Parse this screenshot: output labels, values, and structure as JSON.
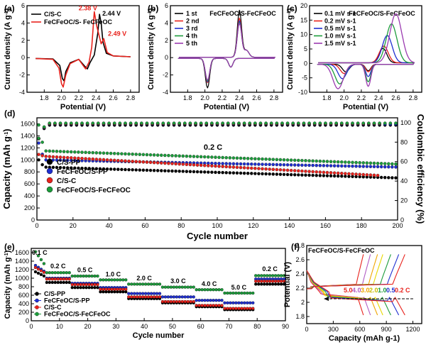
{
  "chart_data": [
    {
      "panel": "(a)",
      "type": "line",
      "xlabel": "Potential (V)",
      "ylabel": "Current density (A g-1)",
      "xlim": [
        1.6,
        2.9
      ],
      "ylim": [
        -4,
        6
      ],
      "xticks": [
        1.8,
        2.0,
        2.2,
        2.4,
        2.6,
        2.8
      ],
      "yticks": [
        -4,
        -2,
        0,
        2,
        4,
        6
      ],
      "series": [
        {
          "name": "C/S-C",
          "color": "#000000",
          "points": [
            [
              1.7,
              -0.1
            ],
            [
              1.9,
              -0.15
            ],
            [
              1.98,
              -0.9
            ],
            [
              2.01,
              -2.4
            ],
            [
              2.03,
              -2.7
            ],
            [
              2.05,
              -1.6
            ],
            [
              2.1,
              -0.6
            ],
            [
              2.2,
              -0.2
            ],
            [
              2.27,
              -1.0
            ],
            [
              2.3,
              -1.3
            ],
            [
              2.33,
              -0.6
            ],
            [
              2.38,
              0.3
            ],
            [
              2.42,
              2.8
            ],
            [
              2.44,
              5.0
            ],
            [
              2.46,
              4.0
            ],
            [
              2.48,
              1.8
            ],
            [
              2.52,
              0.5
            ],
            [
              2.6,
              0.2
            ],
            [
              2.8,
              0.1
            ]
          ]
        },
        {
          "name": "FeCFeOC/S- FeCFeOC",
          "color": "#e8221c",
          "points": [
            [
              1.7,
              -0.1
            ],
            [
              1.9,
              -0.2
            ],
            [
              1.97,
              -1.2
            ],
            [
              2.0,
              -3.0
            ],
            [
              2.02,
              -3.4
            ],
            [
              2.05,
              -2.0
            ],
            [
              2.1,
              -0.7
            ],
            [
              2.2,
              -0.2
            ],
            [
              2.25,
              -0.9
            ],
            [
              2.28,
              -1.3
            ],
            [
              2.32,
              -0.5
            ],
            [
              2.35,
              1.2
            ],
            [
              2.38,
              5.3
            ],
            [
              2.41,
              3.6
            ],
            [
              2.46,
              1.6
            ],
            [
              2.49,
              2.2
            ],
            [
              2.53,
              0.6
            ],
            [
              2.6,
              0.2
            ],
            [
              2.8,
              0.1
            ]
          ]
        }
      ],
      "annotations": [
        {
          "text": "2.38 V",
          "x": 2.38,
          "y": 5.3
        },
        {
          "text": "2.44 V",
          "x": 2.44,
          "y": 5.0
        },
        {
          "text": "2.49 V",
          "x": 2.49,
          "y": 2.2
        }
      ]
    },
    {
      "panel": "(b)",
      "type": "line",
      "title": "FeCFeOC/S-FeCFeOC",
      "xlabel": "Potential (V)",
      "ylabel": "Current density (A g-1)",
      "xlim": [
        1.6,
        2.9
      ],
      "ylim": [
        -4,
        6
      ],
      "xticks": [
        1.8,
        2.0,
        2.2,
        2.4,
        2.6,
        2.8
      ],
      "yticks": [
        -4,
        -2,
        0,
        2,
        4,
        6
      ],
      "series": [
        {
          "name": "1 st",
          "color": "#000000",
          "peak_ox": 5.4,
          "peak_red": -3.4
        },
        {
          "name": "2 nd",
          "color": "#e8221c",
          "peak_ox": 4.5,
          "peak_red": -2.8
        },
        {
          "name": "3 rd",
          "color": "#1f2fd0",
          "peak_ox": 4.2,
          "peak_red": -2.7
        },
        {
          "name": "4 th",
          "color": "#1c9c3b",
          "peak_ox": 4.0,
          "peak_red": -2.6
        },
        {
          "name": "5 th",
          "color": "#9b3bb0",
          "peak_ox": 3.9,
          "peak_red": -2.5
        }
      ]
    },
    {
      "panel": "(c)",
      "type": "line",
      "title": "FeCFeOC/S-FeCFeOC",
      "xlabel": "Potential (V)",
      "ylabel": "Current density (A g-1)",
      "xlim": [
        1.6,
        2.9
      ],
      "ylim": [
        -10,
        20
      ],
      "xticks": [
        1.8,
        2.0,
        2.2,
        2.4,
        2.6,
        2.8
      ],
      "yticks": [
        -10,
        -5,
        0,
        5,
        10,
        15,
        20
      ],
      "series": [
        {
          "name": "0.1 mV s-1",
          "color": "#000000",
          "peak_ox": 5.0,
          "ox_v": 2.45,
          "peak_red": -2.6,
          "red_v": 2.02
        },
        {
          "name": "0.2 mV s-1",
          "color": "#e8221c",
          "peak_ox": 5.8,
          "ox_v": 2.46,
          "peak_red": -3.2,
          "red_v": 2.0
        },
        {
          "name": "0.5 mV s-1",
          "color": "#1f2fd0",
          "peak_ox": 9.5,
          "ox_v": 2.5,
          "peak_red": -5.0,
          "red_v": 1.98
        },
        {
          "name": "1.0 mV s-1",
          "color": "#1c9c3b",
          "peak_ox": 13.5,
          "ox_v": 2.55,
          "peak_red": -6.8,
          "red_v": 1.95
        },
        {
          "name": "1.5 mV s-1",
          "color": "#9b3bb0",
          "peak_ox": 17.0,
          "ox_v": 2.6,
          "peak_red": -8.5,
          "red_v": 1.93
        }
      ]
    },
    {
      "panel": "(d)",
      "type": "scatter",
      "xlabel": "Cycle number",
      "ylabel": "Capacity (mAh g-1)",
      "ylabel2": "Coulombic efficiency (%)",
      "xlim": [
        0,
        200
      ],
      "ylim": [
        0,
        1700
      ],
      "ylim2": [
        0,
        105
      ],
      "xticks": [
        0,
        20,
        40,
        60,
        80,
        100,
        120,
        140,
        160,
        180,
        200
      ],
      "yticks": [
        0,
        200,
        400,
        600,
        800,
        1000,
        1200,
        1400,
        1600
      ],
      "yticks2": [
        0,
        20,
        40,
        60,
        80,
        100
      ],
      "rate_label": "0.2 C",
      "series": [
        {
          "name": "C/S-PP",
          "color": "#000000",
          "start": 880,
          "end": 700,
          "initial": 1000,
          "ce": 97.5
        },
        {
          "name": "FeCFeOC/S-PP",
          "color": "#1f2fd0",
          "start": 1000,
          "end": 880,
          "initial": 1280,
          "ce": 98.5
        },
        {
          "name": "C/S-C",
          "color": "#e8221c",
          "start": 1060,
          "end": 740,
          "initial": 1090,
          "ce": 99.0,
          "last_cycle": 190
        },
        {
          "name": "FeCFeOC/S-FeCFeOC",
          "color": "#1c9c3b",
          "start": 1150,
          "end": 930,
          "initial": 1580,
          "ce": 99.5
        }
      ]
    },
    {
      "panel": "(e)",
      "type": "scatter",
      "xlabel": "Cycle  number",
      "ylabel": "Capacity (mAh g-1)",
      "xlim": [
        0,
        90
      ],
      "ylim": [
        0,
        1700
      ],
      "xticks": [
        0,
        10,
        20,
        30,
        40,
        50,
        60,
        70,
        80,
        90
      ],
      "yticks": [
        0,
        200,
        400,
        600,
        800,
        1000,
        1200,
        1400,
        1600
      ],
      "rates": [
        {
          "label": "0.1 C",
          "from": 1,
          "to": 5
        },
        {
          "label": "0.2 C",
          "from": 5,
          "to": 14
        },
        {
          "label": "0.5 C",
          "from": 14,
          "to": 24
        },
        {
          "label": "1.0 C",
          "from": 24,
          "to": 34
        },
        {
          "label": "2.0 C",
          "from": 34,
          "to": 46
        },
        {
          "label": "3.0 C",
          "from": 46,
          "to": 58
        },
        {
          "label": "4.0 C",
          "from": 58,
          "to": 68
        },
        {
          "label": "5.0 C",
          "from": 68,
          "to": 79
        },
        {
          "label": "0.2 C",
          "from": 79,
          "to": 90
        }
      ],
      "series": [
        {
          "name": "C/S-PP",
          "color": "#000000",
          "levels": [
            1150,
            900,
            780,
            680,
            520,
            420,
            330,
            260,
            860
          ]
        },
        {
          "name": "FeCFeOC/S-PP",
          "color": "#1f2fd0",
          "levels": [
            1300,
            1000,
            880,
            780,
            640,
            560,
            480,
            420,
            980
          ]
        },
        {
          "name": "C/S-C",
          "color": "#e8221c",
          "levels": [
            1250,
            980,
            850,
            740,
            560,
            450,
            360,
            290,
            930
          ]
        },
        {
          "name": "FeCFeOC/S-FeCFeOC",
          "color": "#1c9c3b",
          "levels": [
            1620,
            1130,
            1050,
            960,
            860,
            790,
            730,
            650,
            1060
          ]
        }
      ]
    },
    {
      "panel": "(f)",
      "type": "line",
      "title": "FeCFeOC/S-FeCFeOC",
      "xlabel": "Capacity (mAh g-1)",
      "ylabel": "Potential (V)",
      "xlim": [
        0,
        1300
      ],
      "ylim": [
        1.7,
        2.8
      ],
      "xticks": [
        0,
        300,
        600,
        900,
        1200
      ],
      "yticks": [
        1.8,
        2.0,
        2.2,
        2.4,
        2.6,
        2.8
      ],
      "rate_labels": [
        "5.0",
        "4.0",
        "3.0",
        "2.0",
        "1.0",
        "0.5",
        "0.2 C"
      ],
      "series": [
        {
          "name": "5.0",
          "color": "#e8221c",
          "capacity": 640
        },
        {
          "name": "4.0",
          "color": "#b15cc4",
          "capacity": 720
        },
        {
          "name": "3.0",
          "color": "#f0a500",
          "capacity": 800
        },
        {
          "name": "2.0",
          "color": "#e8d800",
          "capacity": 860
        },
        {
          "name": "1.0",
          "color": "#1c9c3b",
          "capacity": 950
        },
        {
          "name": "0.5",
          "color": "#1f2fd0",
          "capacity": 1040
        },
        {
          "name": "0.2 C",
          "color": "#e8221c",
          "capacity": 1110
        }
      ]
    }
  ]
}
